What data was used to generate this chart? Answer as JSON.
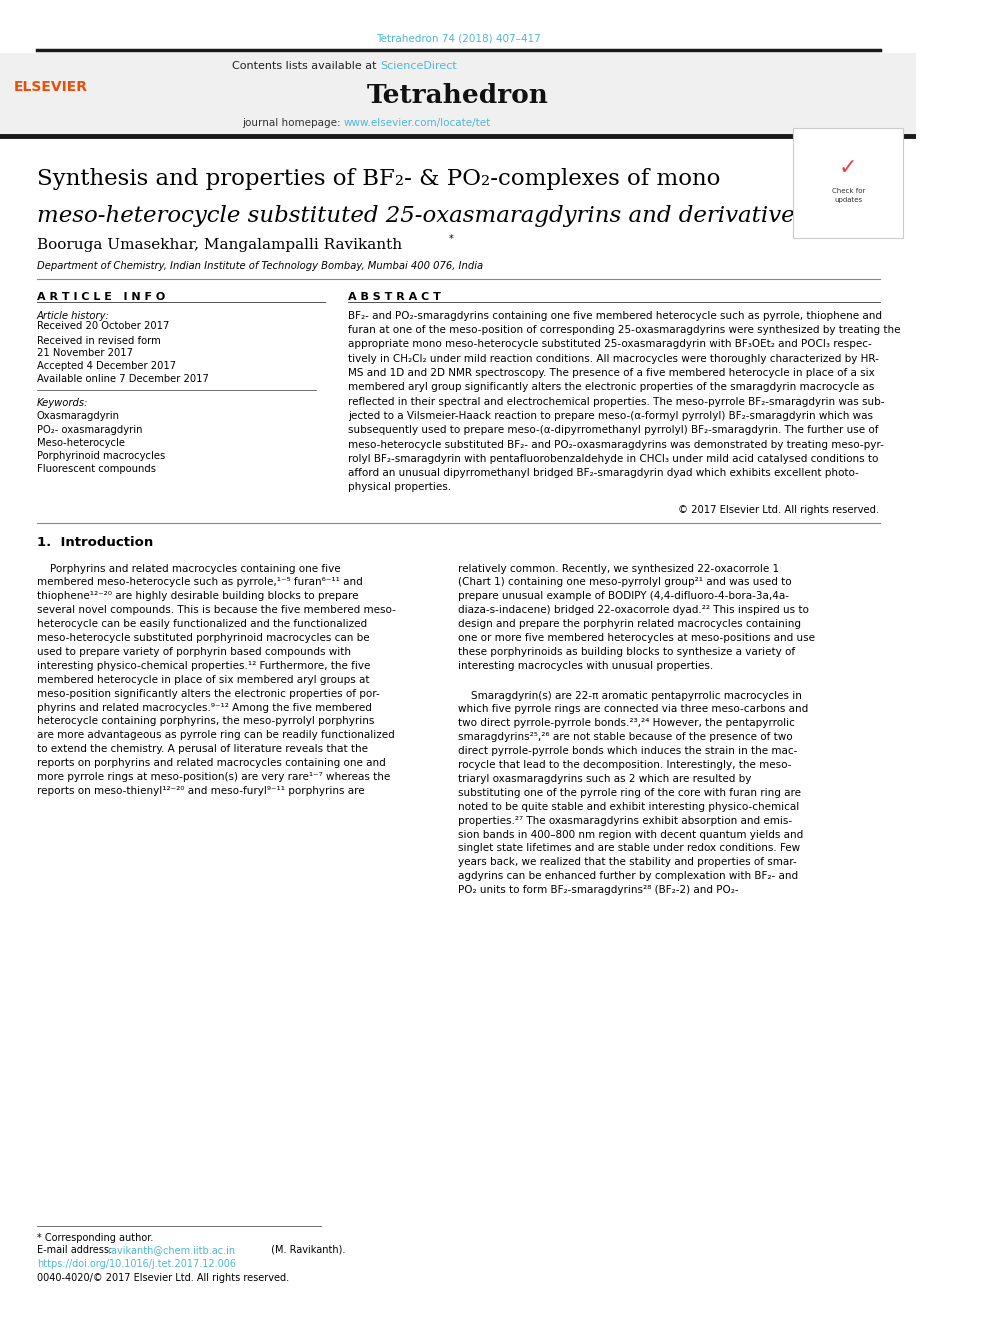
{
  "page_width": 9.92,
  "page_height": 13.23,
  "bg_color": "#ffffff",
  "doi_text": "Tetrahedron 74 (2018) 407–417",
  "doi_color": "#4db8d4",
  "header_bg": "#f0f0f0",
  "sciencedirect_color": "#4db8d4",
  "journal_homepage_color": "#4db8d4",
  "elsevier_color": "#e8500a",
  "thick_bar_color": "#1a1a1a",
  "text_color": "#000000",
  "doi_footer_color": "#4db8d4",
  "article_info_header": "A R T I C L E   I N F O",
  "abstract_header": "A B S T R A C T",
  "keywords": [
    "Oxasmaragdyrin",
    "PO₂- oxasmaragdyrin",
    "Meso-heterocycle",
    "Porphyrinoid macrocycles",
    "Fluorescent compounds"
  ],
  "history_items": [
    "Received 20 October 2017",
    "Received in revised form",
    "21 November 2017",
    "Accepted 4 December 2017",
    "Available online 7 December 2017"
  ],
  "abs_text_lines": [
    "BF₂- and PO₂-smaragdyrins containing one five membered heterocycle such as pyrrole, thiophene and",
    "furan at one of the meso-position of corresponding 25-oxasmaragdyrins were synthesized by treating the",
    "appropriate mono meso-heterocycle substituted 25-oxasmaragdyrin with BF₃OEt₂ and POCl₃ respec-",
    "tively in CH₂Cl₂ under mild reaction conditions. All macrocycles were thoroughly characterized by HR-",
    "MS and 1D and 2D NMR spectroscopy. The presence of a five membered heterocycle in place of a six",
    "membered aryl group significantly alters the electronic properties of the smaragdyrin macrocycle as",
    "reflected in their spectral and electrochemical properties. The meso-pyrrole BF₂-smaragdyrin was sub-",
    "jected to a Vilsmeier-Haack reaction to prepare meso-(α-formyl pyrrolyl) BF₂-smaragdyrin which was",
    "subsequently used to prepare meso-(α-dipyrromethanyl pyrrolyl) BF₂-smaragdyrin. The further use of",
    "meso-heterocycle substituted BF₂- and PO₂-oxasmaragdyrins was demonstrated by treating meso-pyr-",
    "rolyl BF₂-smaragdyrin with pentafluorobenzaldehyde in CHCl₃ under mild acid catalysed conditions to",
    "afford an unusual dipyrromethanyl bridged BF₂-smaragdyrin dyad which exhibits excellent photo-",
    "physical properties."
  ],
  "left_intro_lines": [
    "    Porphyrins and related macrocycles containing one five",
    "membered meso-heterocycle such as pyrrole,¹⁻⁵ furan⁶⁻¹¹ and",
    "thiophene¹²⁻²⁰ are highly desirable building blocks to prepare",
    "several novel compounds. This is because the five membered meso-",
    "heterocycle can be easily functionalized and the functionalized",
    "meso-heterocycle substituted porphyrinoid macrocycles can be",
    "used to prepare variety of porphyrin based compounds with",
    "interesting physico-chemical properties.¹² Furthermore, the five",
    "membered heterocycle in place of six membered aryl groups at",
    "meso-position significantly alters the electronic properties of por-",
    "phyrins and related macrocycles.⁹⁻¹² Among the five membered",
    "heterocycle containing porphyrins, the meso-pyrrolyl porphyrins",
    "are more advantageous as pyrrole ring can be readily functionalized",
    "to extend the chemistry. A perusal of literature reveals that the",
    "reports on porphyrins and related macrocycles containing one and",
    "more pyrrole rings at meso-position(s) are very rare¹⁻⁷ whereas the",
    "reports on meso-thienyl¹²⁻²⁰ and meso-furyl⁹⁻¹¹ porphyrins are"
  ],
  "right_intro_lines": [
    "relatively common. Recently, we synthesized 22-oxacorrole 1",
    "(Chart 1) containing one meso-pyrrolyl group²¹ and was used to",
    "prepare unusual example of BODIPY (4,4-difluoro-4-bora-3a,4a-",
    "diaza-s-indacene) bridged 22-oxacorrole dyad.²² This inspired us to",
    "design and prepare the porphyrin related macrocycles containing",
    "one or more five membered heterocycles at meso-positions and use",
    "these porphyrinoids as building blocks to synthesize a variety of",
    "interesting macrocycles with unusual properties.",
    "    Smaragdyrin(s) are 22-π aromatic pentapyrrolic macrocycles in",
    "which five pyrrole rings are connected via three meso-carbons and",
    "two direct pyrrole-pyrrole bonds.²³,²⁴ However, the pentapyrrolic",
    "smaragdyrins²⁵,²⁶ are not stable because of the presence of two",
    "direct pyrrole-pyrrole bonds which induces the strain in the mac-",
    "rocycle that lead to the decomposition. Interestingly, the meso-",
    "triaryl oxasmaragdyrins such as 2 which are resulted by",
    "substituting one of the pyrrole ring of the core with furan ring are",
    "noted to be quite stable and exhibit interesting physico-chemical",
    "properties.²⁷ The oxasmaragdyrins exhibit absorption and emis-",
    "sion bands in 400–800 nm region with decent quantum yields and",
    "singlet state lifetimes and are stable under redox conditions. Few",
    "years back, we realized that the stability and properties of smar-",
    "agdyrins can be enhanced further by complexation with BF₂- and",
    "PO₂ units to form BF₂-smaragdyrins²⁸ (BF₂-2) and PO₂-"
  ]
}
